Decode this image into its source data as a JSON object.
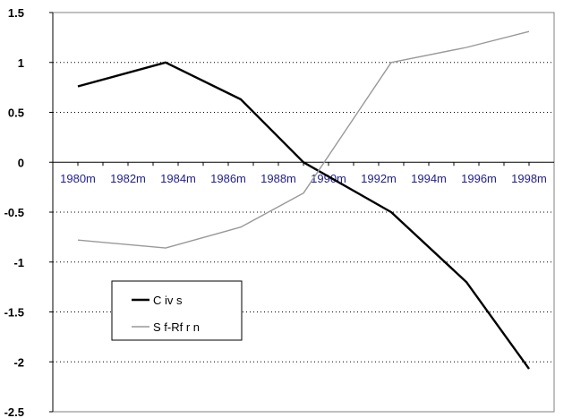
{
  "chart_data": {
    "type": "line",
    "x": [
      "1980m",
      "1983.5m",
      "1986.5m",
      "1989m",
      "1989.5m",
      "1992.5m",
      "1995.5m",
      "1998m"
    ],
    "xticks": [
      "1980m",
      "1982m",
      "1984m",
      "1986m",
      "1988m",
      "1990m",
      "1992m",
      "1994m",
      "1996m",
      "1998m"
    ],
    "ylim": [
      -2.5,
      1.5
    ],
    "yticks": [
      "1.5",
      "1",
      "0.5",
      "0",
      "-0.5",
      "-1",
      "-1.5",
      "-2",
      "-2.5"
    ],
    "grid": true,
    "legend_position": "lower-left",
    "series": [
      {
        "name": "C iv s",
        "color": "#000000",
        "points": [
          [
            1980,
            0.76
          ],
          [
            1983.5,
            1.0
          ],
          [
            1986.5,
            0.63
          ],
          [
            1989,
            0.0
          ],
          [
            1992.5,
            -0.5
          ],
          [
            1995.5,
            -1.2
          ],
          [
            1998,
            -2.07
          ]
        ]
      },
      {
        "name": "S f-Rf r n",
        "color": "#999999",
        "points": [
          [
            1980,
            -0.78
          ],
          [
            1983.5,
            -0.86
          ],
          [
            1986.5,
            -0.65
          ],
          [
            1989,
            -0.31
          ],
          [
            1992.5,
            1.0
          ],
          [
            1995.5,
            1.15
          ],
          [
            1998,
            1.31
          ]
        ]
      }
    ]
  }
}
